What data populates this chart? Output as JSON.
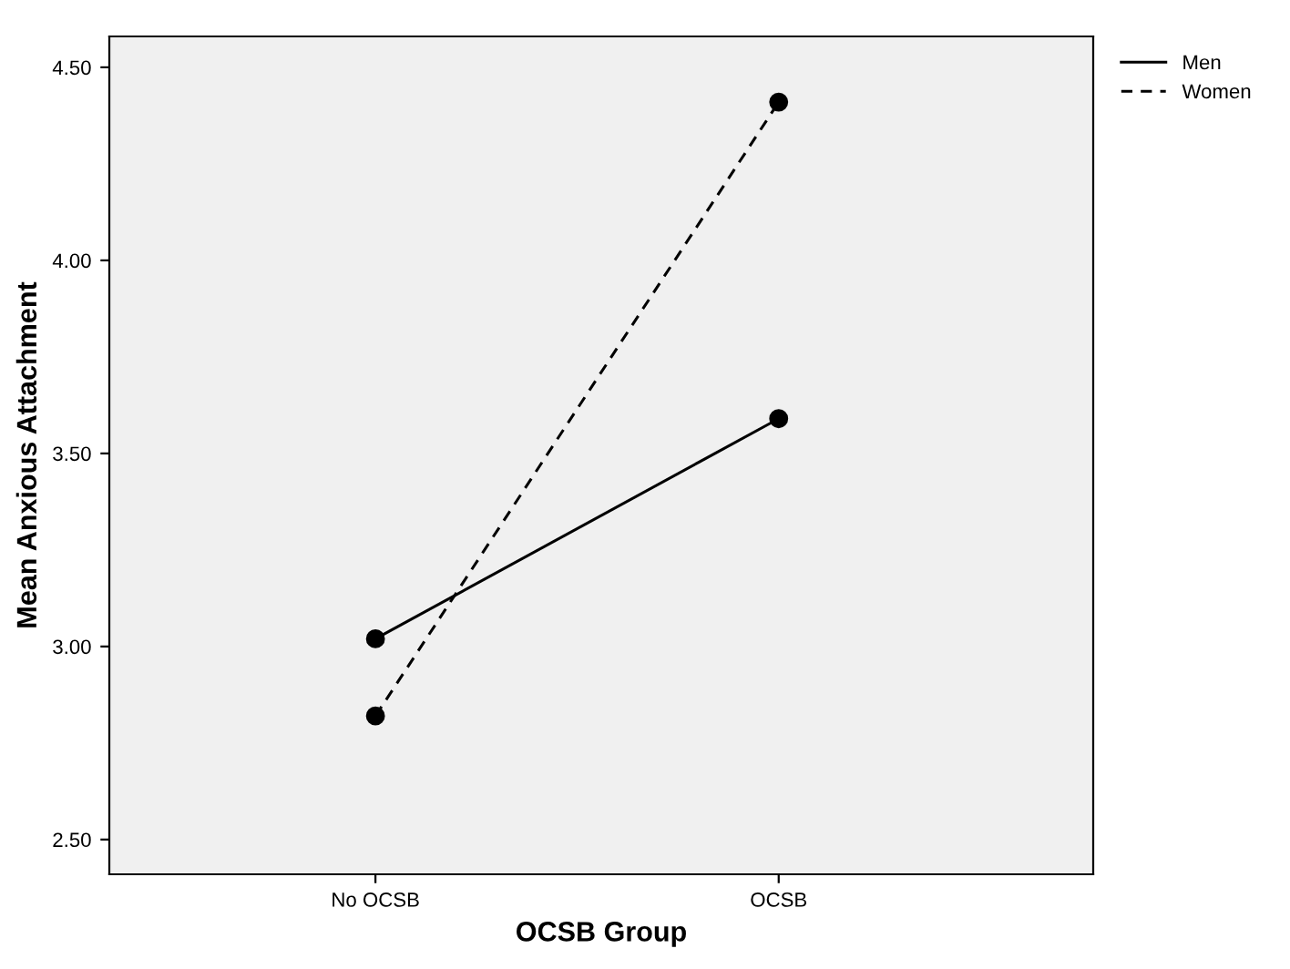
{
  "chart_data": {
    "type": "line",
    "xlabel": "OCSB Group",
    "ylabel": "Mean Anxious Attachment",
    "categories": [
      "No OCSB",
      "OCSB"
    ],
    "series": [
      {
        "name": "Men",
        "color": "#000000",
        "values": [
          3.02,
          3.59
        ],
        "line_style": "solid"
      },
      {
        "name": "Women",
        "color": "#000000",
        "values": [
          2.82,
          4.41
        ],
        "line_style": "dashed"
      }
    ],
    "ylim": [
      2.41,
      4.58
    ],
    "yticks": [
      {
        "value": 2.5,
        "label": "2.50"
      },
      {
        "value": 3.0,
        "label": "3.00"
      },
      {
        "value": 3.5,
        "label": "3.50"
      },
      {
        "value": 4.0,
        "label": "4.00"
      },
      {
        "value": 4.5,
        "label": "4.50"
      }
    ],
    "marker": "circle",
    "legend": "top right",
    "grid": false
  }
}
